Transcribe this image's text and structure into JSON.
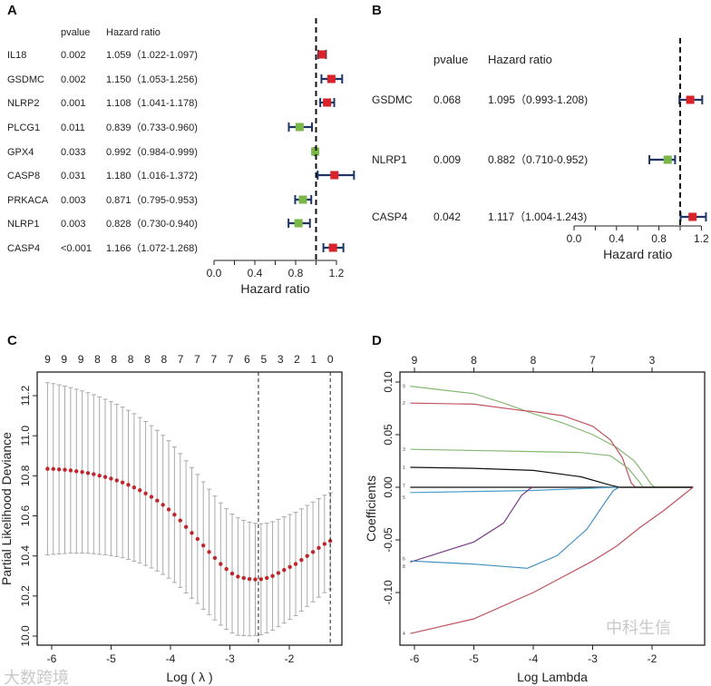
{
  "panels": {
    "A": {
      "label": "A"
    },
    "B": {
      "label": "B"
    },
    "C": {
      "label": "C"
    },
    "D": {
      "label": "D"
    }
  },
  "watermarks": {
    "left": "大数跨境",
    "right": "中科生信"
  },
  "colors": {
    "risk": "#d8232a",
    "protective": "#7ab648",
    "ci": "#1f3566",
    "mean_points": "#c0272d",
    "error_bars": "#aaaaaa"
  },
  "chart_data": [
    {
      "id": "A",
      "type": "forest",
      "headers": {
        "pvalue": "pvalue",
        "hr": "Hazard ratio"
      },
      "xlabel": "Hazard ratio",
      "xlim": [
        0,
        1.2
      ],
      "xticks": [
        "0.0",
        "0.4",
        "0.8",
        "1.2"
      ],
      "reference_line": 1.0,
      "rows": [
        {
          "gene": "IL18",
          "pvalue": "0.002",
          "hr_text": "1.059（1.022-1.097)",
          "hr": 1.059,
          "lo": 1.022,
          "hi": 1.097
        },
        {
          "gene": "GSDMC",
          "pvalue": "0.002",
          "hr_text": "1.150（1.053-1.256)",
          "hr": 1.15,
          "lo": 1.053,
          "hi": 1.256
        },
        {
          "gene": "NLRP2",
          "pvalue": "0.001",
          "hr_text": "1.108（1.041-1.178)",
          "hr": 1.108,
          "lo": 1.041,
          "hi": 1.178
        },
        {
          "gene": "PLCG1",
          "pvalue": "0.011",
          "hr_text": "0.839（0.733-0.960)",
          "hr": 0.839,
          "lo": 0.733,
          "hi": 0.96
        },
        {
          "gene": "GPX4",
          "pvalue": "0.033",
          "hr_text": "0.992（0.984-0.999)",
          "hr": 0.992,
          "lo": 0.984,
          "hi": 0.999
        },
        {
          "gene": "CASP8",
          "pvalue": "0.031",
          "hr_text": "1.180（1.016-1.372)",
          "hr": 1.18,
          "lo": 1.016,
          "hi": 1.372
        },
        {
          "gene": "PRKACA",
          "pvalue": "0.003",
          "hr_text": "0.871（0.795-0.953)",
          "hr": 0.871,
          "lo": 0.795,
          "hi": 0.953
        },
        {
          "gene": "NLRP1",
          "pvalue": "0.003",
          "hr_text": "0.828（0.730-0.940)",
          "hr": 0.828,
          "lo": 0.73,
          "hi": 0.94
        },
        {
          "gene": "CASP4",
          "pvalue": "<0.001",
          "hr_text": "1.166（1.072-1.268)",
          "hr": 1.166,
          "lo": 1.072,
          "hi": 1.268
        }
      ]
    },
    {
      "id": "B",
      "type": "forest",
      "headers": {
        "pvalue": "pvalue",
        "hr": "Hazard ratio"
      },
      "xlabel": "Hazard ratio",
      "xlim": [
        0,
        1.2
      ],
      "xticks": [
        "0.0",
        "0.4",
        "0.8",
        "1.2"
      ],
      "reference_line": 1.0,
      "rows": [
        {
          "gene": "GSDMC",
          "pvalue": "0.068",
          "hr_text": "1.095（0.993-1.208)",
          "hr": 1.095,
          "lo": 0.993,
          "hi": 1.208
        },
        {
          "gene": "NLRP1",
          "pvalue": "0.009",
          "hr_text": "0.882（0.710-0.952)",
          "hr": 0.882,
          "lo": 0.71,
          "hi": 0.952
        },
        {
          "gene": "CASP4",
          "pvalue": "0.042",
          "hr_text": "1.117（1.004-1.243)",
          "hr": 1.117,
          "lo": 1.004,
          "hi": 1.243
        }
      ]
    },
    {
      "id": "C",
      "type": "scatter",
      "xlabel": "Log ( λ )",
      "ylabel": "Partial Likelihood Deviance",
      "xlim": [
        -6.25,
        -1.2
      ],
      "ylim": [
        9.955,
        11.32
      ],
      "xticks": [
        "-6",
        "-5",
        "-4",
        "-3",
        "-2"
      ],
      "yticks": [
        "10.0",
        "10.2",
        "10.4",
        "10.6",
        "10.8",
        "11.0",
        "11.2"
      ],
      "top_counts": [
        "9",
        "9",
        "9",
        "8",
        "8",
        "8",
        "8",
        "8",
        "7",
        "7",
        "7",
        "7",
        "6",
        "5",
        "3",
        "2",
        "1",
        "0"
      ],
      "vlines": [
        -2.52,
        -1.31
      ],
      "x_start": -6.07,
      "x_end": -1.31,
      "mean": [
        10.835,
        10.834,
        10.832,
        10.83,
        10.827,
        10.823,
        10.819,
        10.814,
        10.808,
        10.801,
        10.794,
        10.786,
        10.777,
        10.767,
        10.755,
        10.742,
        10.728,
        10.712,
        10.695,
        10.676,
        10.655,
        10.632,
        10.606,
        10.577,
        10.545,
        10.515,
        10.485,
        10.452,
        10.42,
        10.39,
        10.36,
        10.335,
        10.312,
        10.297,
        10.29,
        10.285,
        10.283,
        10.284,
        10.29,
        10.3,
        10.315,
        10.33,
        10.345,
        10.36,
        10.38,
        10.4,
        10.42,
        10.44,
        10.46,
        10.475
      ],
      "ci_halfwidth": [
        0.43,
        0.426,
        0.422,
        0.418,
        0.413,
        0.409,
        0.405,
        0.401,
        0.397,
        0.393,
        0.388,
        0.384,
        0.38,
        0.376,
        0.372,
        0.368,
        0.363,
        0.359,
        0.355,
        0.351,
        0.347,
        0.343,
        0.338,
        0.334,
        0.33,
        0.326,
        0.322,
        0.318,
        0.313,
        0.309,
        0.305,
        0.301,
        0.297,
        0.293,
        0.288,
        0.284,
        0.28,
        0.277,
        0.274,
        0.271,
        0.268,
        0.265,
        0.262,
        0.258,
        0.255,
        0.252,
        0.249,
        0.246,
        0.243,
        0.24
      ]
    },
    {
      "id": "D",
      "type": "line",
      "xlabel": "Log Lambda",
      "ylabel": "Coefficients",
      "xlim": [
        -6.25,
        -1.2
      ],
      "ylim": [
        -0.149,
        0.1
      ],
      "xticks": [
        "-6",
        "-5",
        "-4",
        "-3",
        "-2"
      ],
      "yticks": [
        "-0.10",
        "-0.05",
        "0.00",
        "0.05",
        "0.10"
      ],
      "top_axis": [
        "9",
        "8",
        "8",
        "7",
        "3"
      ],
      "series": [
        {
          "name": "9",
          "color": "#86b873",
          "points": [
            [
              -6.07,
              0.096
            ],
            [
              -5,
              0.089
            ],
            [
              -4.5,
              0.08
            ],
            [
              -4,
              0.07
            ],
            [
              -3.5,
              0.061
            ],
            [
              -3,
              0.05
            ],
            [
              -2.6,
              0.038
            ],
            [
              -2.3,
              0.025
            ],
            [
              -2.1,
              0.01
            ],
            [
              -2.02,
              0.003
            ],
            [
              -1.95,
              0
            ],
            [
              -1.31,
              0
            ]
          ]
        },
        {
          "name": "2",
          "color": "#c0525e",
          "points": [
            [
              -6.07,
              0.08
            ],
            [
              -5,
              0.079
            ],
            [
              -4.2,
              0.073
            ],
            [
              -4,
              0.072
            ],
            [
              -3.5,
              0.068
            ],
            [
              -3,
              0.058
            ],
            [
              -2.7,
              0.045
            ],
            [
              -2.5,
              0.028
            ],
            [
              -2.35,
              0.004
            ],
            [
              -2.28,
              0
            ],
            [
              -1.31,
              0
            ]
          ]
        },
        {
          "name": "3",
          "color": "#86b873",
          "points": [
            [
              -6.07,
              0.036
            ],
            [
              -4,
              0.034
            ],
            [
              -3.2,
              0.033
            ],
            [
              -2.7,
              0.03
            ],
            [
              -2.4,
              0.018
            ],
            [
              -2.2,
              0.004
            ],
            [
              -2.15,
              0
            ],
            [
              -1.31,
              0
            ]
          ]
        },
        {
          "name": "1",
          "color": "#111111",
          "points": [
            [
              -6.07,
              0.019
            ],
            [
              -5,
              0.018
            ],
            [
              -4,
              0.016
            ],
            [
              -3.2,
              0.01
            ],
            [
              -2.7,
              0.002
            ],
            [
              -2.55,
              0
            ],
            [
              -1.31,
              0
            ]
          ]
        },
        {
          "name": "7",
          "color": "#111111",
          "points": [
            [
              -6.07,
              0
            ],
            [
              -1.31,
              0
            ]
          ]
        },
        {
          "name": "5",
          "color": "#4a9fc9",
          "points": [
            [
              -6.07,
              -0.005
            ],
            [
              -4,
              -0.003
            ],
            [
              -2.6,
              0
            ]
          ]
        },
        {
          "name": "6",
          "color": "#7a3d8a",
          "points": [
            [
              -6.07,
              -0.071
            ],
            [
              -5,
              -0.052
            ],
            [
              -4.5,
              -0.034
            ],
            [
              -4.2,
              -0.008
            ],
            [
              -4.05,
              -0.001
            ],
            [
              -4,
              0
            ]
          ]
        },
        {
          "name": "8",
          "color": "#3f8fbf",
          "points": [
            [
              -6.07,
              -0.07
            ],
            [
              -5,
              -0.073
            ],
            [
              -4.1,
              -0.077
            ],
            [
              -3.6,
              -0.065
            ],
            [
              -3.1,
              -0.04
            ],
            [
              -2.8,
              -0.015
            ],
            [
              -2.65,
              -0.003
            ],
            [
              -2.55,
              0
            ]
          ]
        },
        {
          "name": "4",
          "color": "#c0525e",
          "points": [
            [
              -6.07,
              -0.139
            ],
            [
              -5,
              -0.125
            ],
            [
              -4,
              -0.1
            ],
            [
              -3.5,
              -0.085
            ],
            [
              -3,
              -0.07
            ],
            [
              -2.6,
              -0.056
            ],
            [
              -2.2,
              -0.038
            ],
            [
              -1.8,
              -0.022
            ],
            [
              -1.31,
              0
            ]
          ]
        }
      ]
    }
  ]
}
